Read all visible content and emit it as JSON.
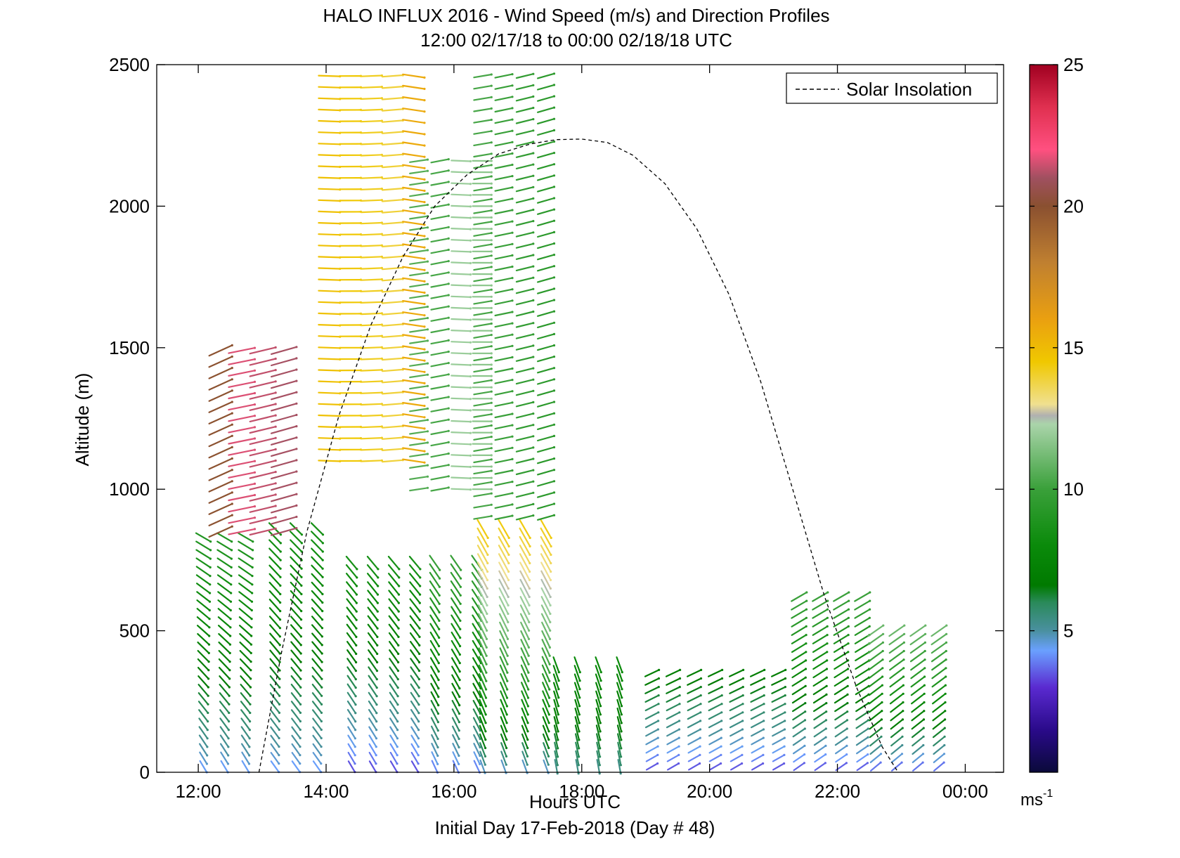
{
  "chart_data": {
    "type": "wind barb / vector profile (quiver)",
    "title": "HALO INFLUX 2016 - Wind Speed (m/s) and Direction Profiles",
    "subtitle": "12:00 02/17/18 to 00:00 02/18/18  UTC",
    "xlabel": "Hours UTC",
    "ylabel": "Altitude (m)",
    "footer": "Initial Day 17-Feb-2018 (Day # 48)",
    "xlim_hours": [
      11.35,
      24.6
    ],
    "ylim": [
      0,
      2500
    ],
    "x_ticks": [
      {
        "h": 12,
        "label": "12:00"
      },
      {
        "h": 14,
        "label": "14:00"
      },
      {
        "h": 16,
        "label": "16:00"
      },
      {
        "h": 18,
        "label": "18:00"
      },
      {
        "h": 20,
        "label": "20:00"
      },
      {
        "h": 22,
        "label": "22:00"
      },
      {
        "h": 24,
        "label": "00:00"
      }
    ],
    "y_ticks": [
      {
        "v": 0,
        "label": "0"
      },
      {
        "v": 500,
        "label": "500"
      },
      {
        "v": 1000,
        "label": "1000"
      },
      {
        "v": 1500,
        "label": "1500"
      },
      {
        "v": 2000,
        "label": "2000"
      },
      {
        "v": 2500,
        "label": "2500"
      }
    ],
    "legend": {
      "entry": "Solar Insolation",
      "style": "dashed",
      "color": "#000000",
      "placement": "top-right"
    },
    "solar_insolation": {
      "description": "dashed curve, sunrise to sunset",
      "points": [
        [
          12.95,
          0
        ],
        [
          13.3,
          420
        ],
        [
          13.7,
          850
        ],
        [
          14.2,
          1260
        ],
        [
          14.7,
          1580
        ],
        [
          15.2,
          1820
        ],
        [
          15.7,
          2000
        ],
        [
          16.2,
          2110
        ],
        [
          16.7,
          2185
        ],
        [
          17.2,
          2220
        ],
        [
          17.6,
          2235
        ],
        [
          18.0,
          2237
        ],
        [
          18.4,
          2225
        ],
        [
          18.8,
          2180
        ],
        [
          19.3,
          2080
        ],
        [
          19.8,
          1920
        ],
        [
          20.3,
          1690
        ],
        [
          20.8,
          1380
        ],
        [
          21.3,
          1000
        ],
        [
          21.8,
          620
        ],
        [
          22.3,
          300
        ],
        [
          22.7,
          90
        ],
        [
          22.95,
          0
        ]
      ]
    },
    "colorbar": {
      "label_main": "ms",
      "label_exp": "-1",
      "range": [
        0,
        25
      ],
      "ticks": [
        {
          "v": 5,
          "label": "5"
        },
        {
          "v": 10,
          "label": "10"
        },
        {
          "v": 15,
          "label": "15"
        },
        {
          "v": 20,
          "label": "20"
        },
        {
          "v": 25,
          "label": "25"
        }
      ],
      "stops": [
        [
          0,
          "#0a0a3a"
        ],
        [
          1.5,
          "#2a0a8a"
        ],
        [
          3,
          "#5a2ad0"
        ],
        [
          4.3,
          "#6aa0ff"
        ],
        [
          5,
          "#4a90a0"
        ],
        [
          6,
          "#2a8a5a"
        ],
        [
          6.6,
          "#007a00"
        ],
        [
          8,
          "#0a8a0a"
        ],
        [
          10,
          "#3aa03a"
        ],
        [
          12.3,
          "#aad4aa"
        ],
        [
          12.6,
          "#b0b0b0"
        ],
        [
          13,
          "#f0e090"
        ],
        [
          14.5,
          "#f0c800"
        ],
        [
          16,
          "#eaa010"
        ],
        [
          18,
          "#c08030"
        ],
        [
          20,
          "#8a5030"
        ],
        [
          21,
          "#a05060"
        ],
        [
          22,
          "#ff5080"
        ],
        [
          23.5,
          "#e03050"
        ],
        [
          25,
          "#a00020"
        ]
      ]
    },
    "wind_profiles": {
      "units": "m/s, direction in degrees (meteorological, from)",
      "segments": [
        {
          "h_start": 12.08,
          "h_end": 12.85,
          "step": 0.33,
          "alt_top": 830,
          "dir_low": 330,
          "dir_high": 300,
          "spd_low": 4.0,
          "spd_high": 9.0
        },
        {
          "h_start": 13.2,
          "h_end": 14.15,
          "step": 0.33,
          "alt_top": 860,
          "dir_low": 325,
          "dir_high": 315,
          "spd_low": 4.0,
          "spd_high": 8.5
        },
        {
          "h_start": 14.4,
          "h_end": 15.55,
          "step": 0.33,
          "alt_top": 740,
          "dir_low": 330,
          "dir_high": 320,
          "spd_low": 3.0,
          "spd_high": 8.5
        },
        {
          "h_start": 15.7,
          "h_end": 16.45,
          "step": 0.33,
          "alt_top": 760,
          "dir_low": 335,
          "dir_high": 325,
          "spd_low": 3.5,
          "spd_high": 10.0
        },
        {
          "h_start": 16.45,
          "h_end": 17.45,
          "step": 0.33,
          "alt_top": 880,
          "dir_low": 340,
          "dir_high": 330,
          "spd_low": 4.0,
          "spd_high": 14.5
        },
        {
          "h_start": 17.6,
          "h_end": 18.9,
          "step": 0.33,
          "alt_top": 380,
          "dir_low": 350,
          "dir_high": 340,
          "spd_low": 5.0,
          "spd_high": 8.0
        },
        {
          "h_start": 19.1,
          "h_end": 21.3,
          "step": 0.33,
          "alt_top": 360,
          "dir_low": 240,
          "dir_high": 245,
          "spd_low": 3.0,
          "spd_high": 7.0
        },
        {
          "h_start": 21.4,
          "h_end": 22.5,
          "step": 0.33,
          "alt_top": 620,
          "dir_low": 235,
          "dir_high": 240,
          "spd_low": 3.0,
          "spd_high": 10.0
        },
        {
          "h_start": 22.6,
          "h_end": 23.8,
          "step": 0.33,
          "alt_top": 500,
          "dir_low": 230,
          "dir_high": 235,
          "spd_low": 3.0,
          "spd_high": 11.0
        }
      ],
      "upper_blocks": [
        {
          "h_start": 14.05,
          "h_end": 15.45,
          "step": 0.33,
          "alt_low": 1100,
          "alt_top": 2490,
          "dir": 270,
          "spd": 14.5
        },
        {
          "h_start": 15.45,
          "h_end": 16.45,
          "step": 0.33,
          "alt_low": 1000,
          "alt_top": 2180,
          "dir": 265,
          "spd": 11.0
        },
        {
          "h_start": 16.45,
          "h_end": 17.45,
          "step": 0.33,
          "alt_low": 900,
          "alt_top": 2490,
          "dir": 255,
          "spd": 9.5
        },
        {
          "h_start": 12.35,
          "h_end": 13.6,
          "step": 0.33,
          "alt_low": 850,
          "alt_top": 1500,
          "dir": 250,
          "spd": 20.5
        }
      ]
    }
  }
}
